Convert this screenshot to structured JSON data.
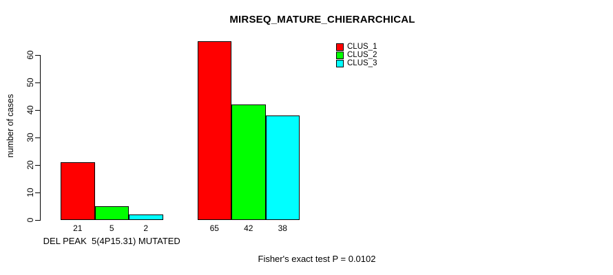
{
  "title": "MIRSEQ_MATURE_CHIERARCHICAL",
  "annotation": "Fisher's exact test P = 0.0102",
  "chart_data": {
    "type": "bar",
    "title": "MIRSEQ_MATURE_CHIERARCHICAL",
    "xlabel": "",
    "ylabel": "number of cases",
    "ylim": [
      0,
      65
    ],
    "yticks": [
      "0",
      "10",
      "20",
      "30",
      "40",
      "50",
      "60"
    ],
    "grid": false,
    "legend_position": "top-right-inside",
    "bar_borders": true,
    "categories": [
      "DEL PEAK  5(4P15.31) MUTATED",
      ""
    ],
    "series": [
      {
        "name": "CLUS_1",
        "color": "#FF0000",
        "values": [
          21,
          65
        ]
      },
      {
        "name": "CLUS_2",
        "color": "#00FF00",
        "values": [
          5,
          42
        ]
      },
      {
        "name": "CLUS_3",
        "color": "#00FFFF",
        "values": [
          2,
          38
        ]
      }
    ],
    "colors": {
      "bar_border": "#000000",
      "axis": "#000000",
      "text": "#000000",
      "background": "#FFFFFF"
    }
  }
}
